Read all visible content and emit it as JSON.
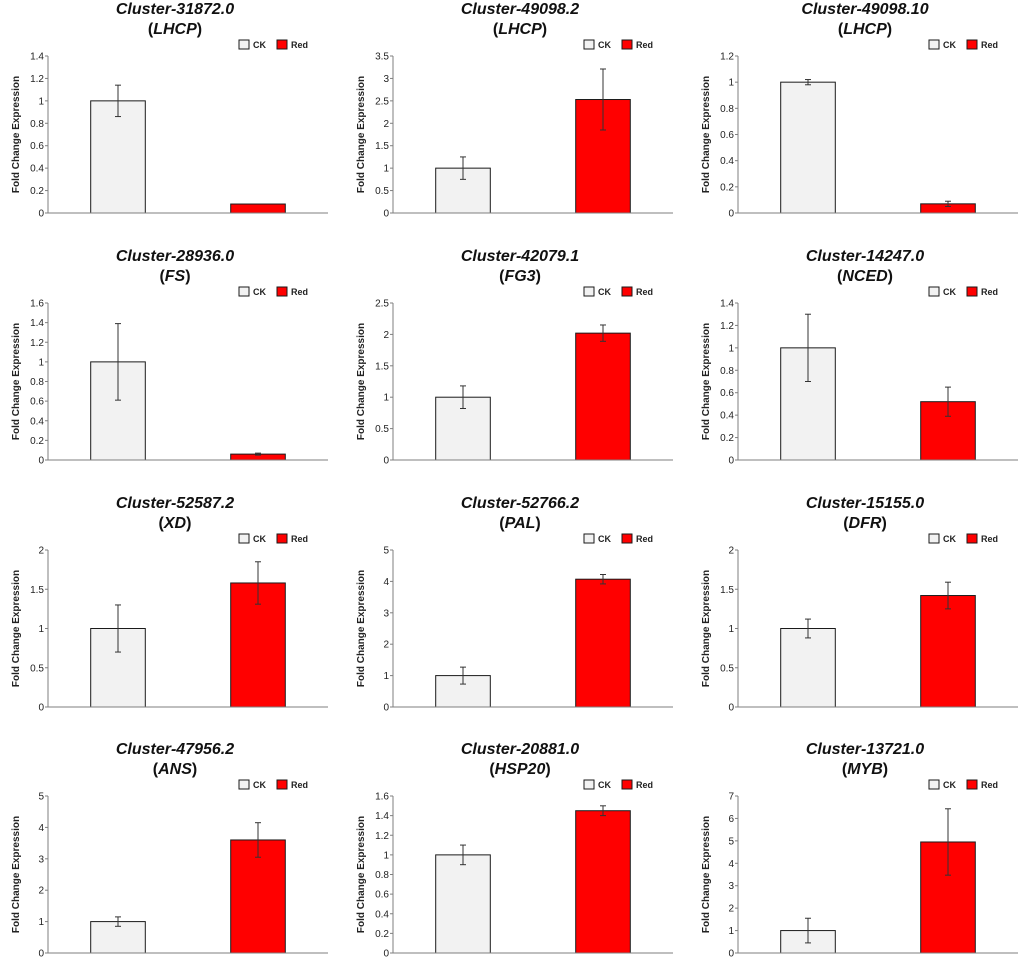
{
  "legend": {
    "ck_label": "CK",
    "red_label": "Red"
  },
  "colors": {
    "ck_fill": "#f2f2f2",
    "red_fill": "#ff0000",
    "bar_stroke": "#1a1a1a",
    "axis": "#7f7f7f",
    "error": "#333333"
  },
  "chart_data": [
    {
      "type": "bar",
      "title": "Cluster-31872.0",
      "gene": "LHCP",
      "ylabel": "Fold Change Expression",
      "categories": [
        "CK",
        "Red"
      ],
      "values": [
        1.0,
        0.08
      ],
      "errors": [
        0.14,
        0.0
      ],
      "ylim": [
        0,
        1.4
      ],
      "yticks": [
        "0",
        "0.2",
        "0.4",
        "0.6",
        "0.8",
        "1",
        "1.2",
        "1.4"
      ]
    },
    {
      "type": "bar",
      "title": "Cluster-49098.2",
      "gene": "LHCP",
      "ylabel": "Fold Change Expression",
      "categories": [
        "CK",
        "Red"
      ],
      "values": [
        1.0,
        2.53
      ],
      "errors": [
        0.25,
        0.68
      ],
      "ylim": [
        0,
        3.5
      ],
      "yticks": [
        "0",
        "0.5",
        "1",
        "1.5",
        "2",
        "2.5",
        "3",
        "3.5"
      ]
    },
    {
      "type": "bar",
      "title": "Cluster-49098.10",
      "gene": "LHCP",
      "ylabel": "Fold Change Expression",
      "categories": [
        "CK",
        "Red"
      ],
      "values": [
        1.0,
        0.07
      ],
      "errors": [
        0.02,
        0.02
      ],
      "ylim": [
        0,
        1.2
      ],
      "yticks": [
        "0",
        "0.2",
        "0.4",
        "0.6",
        "0.8",
        "1",
        "1.2"
      ]
    },
    {
      "type": "bar",
      "title": "Cluster-28936.0",
      "gene": "FS",
      "ylabel": "Fold Change Expression",
      "categories": [
        "CK",
        "Red"
      ],
      "values": [
        1.0,
        0.06
      ],
      "errors": [
        0.39,
        0.01
      ],
      "ylim": [
        0,
        1.6
      ],
      "yticks": [
        "0",
        "0.2",
        "0.4",
        "0.6",
        "0.8",
        "1",
        "1.2",
        "1.4",
        "1.6"
      ]
    },
    {
      "type": "bar",
      "title": "Cluster-42079.1",
      "gene": "FG3",
      "ylabel": "Fold Change Expression",
      "categories": [
        "CK",
        "Red"
      ],
      "values": [
        1.0,
        2.02
      ],
      "errors": [
        0.18,
        0.13
      ],
      "ylim": [
        0,
        2.5
      ],
      "yticks": [
        "0",
        "0.5",
        "1",
        "1.5",
        "2",
        "2.5"
      ]
    },
    {
      "type": "bar",
      "title": "Cluster-14247.0",
      "gene": "NCED",
      "ylabel": "Fold Change Expression",
      "categories": [
        "CK",
        "Red"
      ],
      "values": [
        1.0,
        0.52
      ],
      "errors": [
        0.3,
        0.13
      ],
      "ylim": [
        0,
        1.4
      ],
      "yticks": [
        "0",
        "0.2",
        "0.4",
        "0.6",
        "0.8",
        "1",
        "1.2",
        "1.4"
      ]
    },
    {
      "type": "bar",
      "title": "Cluster-52587.2",
      "gene": "XD",
      "ylabel": "Fold Change Expression",
      "categories": [
        "CK",
        "Red"
      ],
      "values": [
        1.0,
        1.58
      ],
      "errors": [
        0.3,
        0.27
      ],
      "ylim": [
        0,
        2
      ],
      "yticks": [
        "0",
        "0.5",
        "1",
        "1.5",
        "2"
      ]
    },
    {
      "type": "bar",
      "title": "Cluster-52766.2",
      "gene": "PAL",
      "ylabel": "Fold Change Expression",
      "categories": [
        "CK",
        "Red"
      ],
      "values": [
        1.0,
        4.07
      ],
      "errors": [
        0.27,
        0.15
      ],
      "ylim": [
        0,
        5
      ],
      "yticks": [
        "0",
        "1",
        "2",
        "3",
        "4",
        "5"
      ]
    },
    {
      "type": "bar",
      "title": "Cluster-15155.0",
      "gene": "DFR",
      "ylabel": "Fold Change Expression",
      "categories": [
        "CK",
        "Red"
      ],
      "values": [
        1.0,
        1.42
      ],
      "errors": [
        0.12,
        0.17
      ],
      "ylim": [
        0,
        2
      ],
      "yticks": [
        "0",
        "0.5",
        "1",
        "1.5",
        "2"
      ]
    },
    {
      "type": "bar",
      "title": "Cluster-47956.2",
      "gene": "ANS",
      "ylabel": "Fold Change Expression",
      "categories": [
        "CK",
        "Red"
      ],
      "values": [
        1.0,
        3.6
      ],
      "errors": [
        0.15,
        0.55
      ],
      "ylim": [
        0,
        5
      ],
      "yticks": [
        "0",
        "1",
        "2",
        "3",
        "4",
        "5"
      ]
    },
    {
      "type": "bar",
      "title": "Cluster-20881.0",
      "gene": "HSP20",
      "ylabel": "Fold Change Expression",
      "categories": [
        "CK",
        "Red"
      ],
      "values": [
        1.0,
        1.45
      ],
      "errors": [
        0.1,
        0.05
      ],
      "ylim": [
        0,
        1.6
      ],
      "yticks": [
        "0",
        "0.2",
        "0.4",
        "0.6",
        "0.8",
        "1",
        "1.2",
        "1.4",
        "1.6"
      ]
    },
    {
      "type": "bar",
      "title": "Cluster-13721.0",
      "gene": "MYB",
      "ylabel": "Fold Change Expression",
      "categories": [
        "CK",
        "Red"
      ],
      "values": [
        1.0,
        4.95
      ],
      "errors": [
        0.55,
        1.48
      ],
      "ylim": [
        0,
        7
      ],
      "yticks": [
        "0",
        "1",
        "2",
        "3",
        "4",
        "5",
        "6",
        "7"
      ]
    }
  ]
}
